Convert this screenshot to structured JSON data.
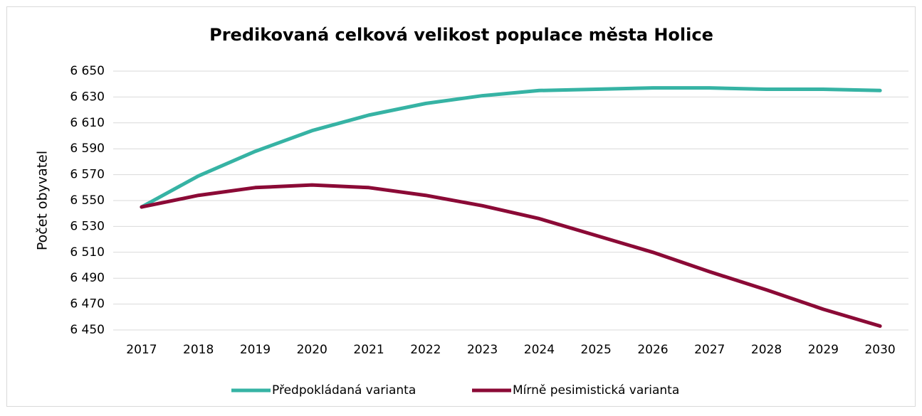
{
  "chart_data": {
    "type": "line",
    "title": "Predikovaná celková velikost populace města Holice",
    "y_label": "Počet obyvatel",
    "categories": [
      "2017",
      "2018",
      "2019",
      "2020",
      "2021",
      "2022",
      "2023",
      "2024",
      "2025",
      "2026",
      "2027",
      "2028",
      "2029",
      "2030"
    ],
    "series": [
      {
        "name": "Předpokládaná varianta",
        "color": "#36b3a4",
        "values": [
          6545,
          6569,
          6588,
          6604,
          6616,
          6625,
          6631,
          6635,
          6636,
          6637,
          6637,
          6636,
          6636,
          6635
        ]
      },
      {
        "name": "Mírně pesimistická varianta",
        "color": "#8b0a36",
        "values": [
          6545,
          6554,
          6560,
          6562,
          6560,
          6554,
          6546,
          6536,
          6523,
          6510,
          6495,
          6481,
          6466,
          6453
        ]
      }
    ],
    "ylim": [
      6450,
      6650
    ],
    "yticks": [
      {
        "value": 6450,
        "label": "6 450"
      },
      {
        "value": 6470,
        "label": "6 470"
      },
      {
        "value": 6490,
        "label": "6 490"
      },
      {
        "value": 6510,
        "label": "6 510"
      },
      {
        "value": 6530,
        "label": "6 530"
      },
      {
        "value": 6550,
        "label": "6 550"
      },
      {
        "value": 6570,
        "label": "6 570"
      },
      {
        "value": 6590,
        "label": "6 590"
      },
      {
        "value": 6610,
        "label": "6 610"
      },
      {
        "value": 6630,
        "label": "6 630"
      },
      {
        "value": 6650,
        "label": "6 650"
      }
    ],
    "grid": true,
    "legend": "bottom"
  }
}
